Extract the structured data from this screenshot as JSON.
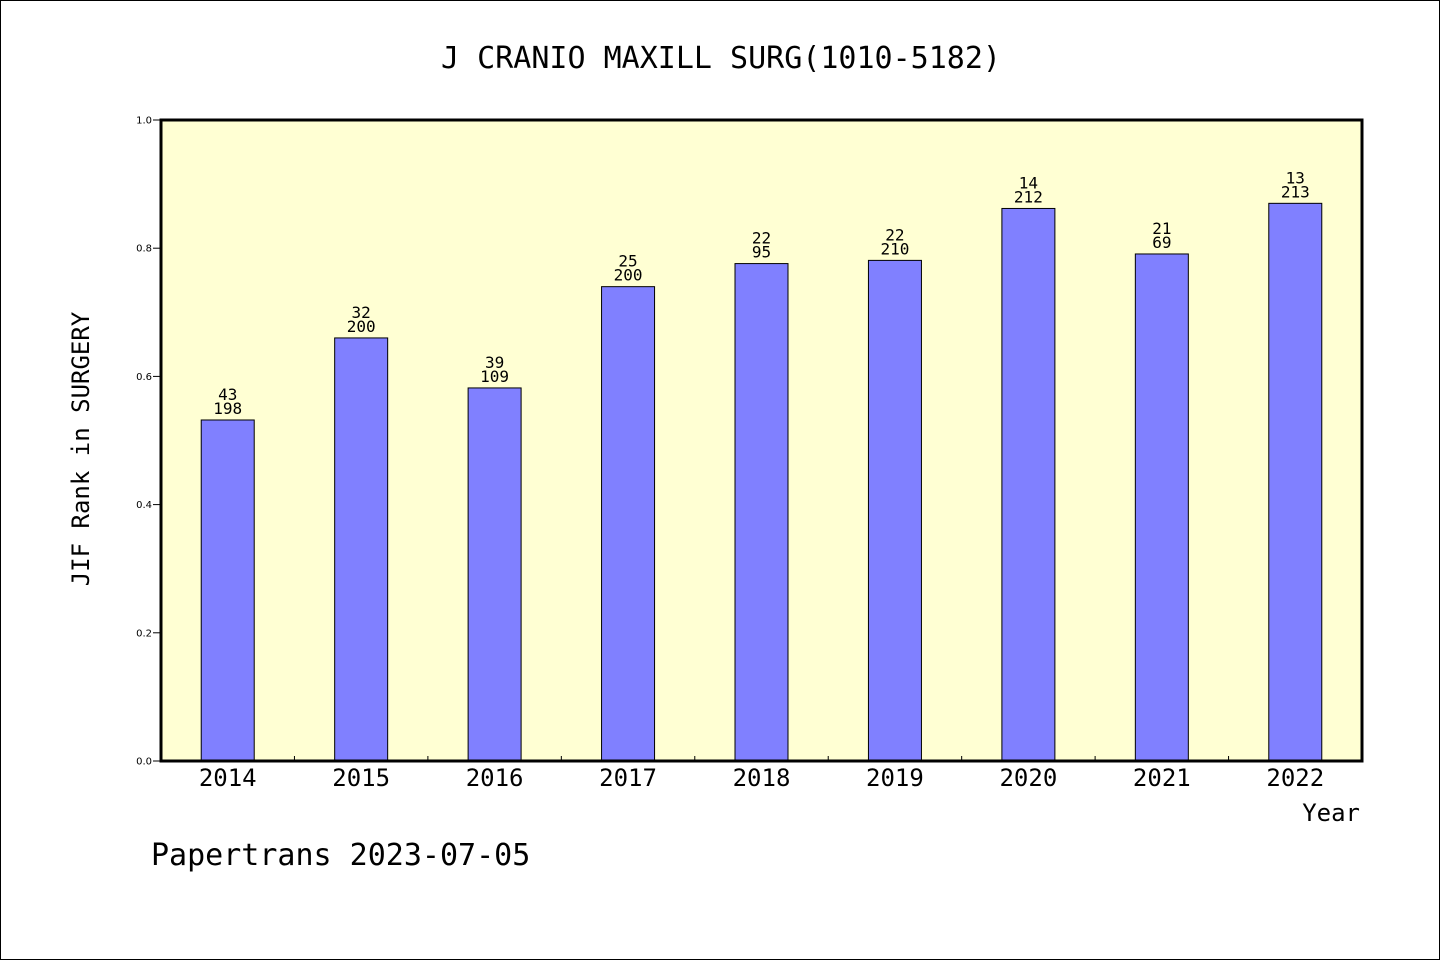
{
  "chart_data": {
    "type": "bar",
    "title": "J CRANIO MAXILL SURG(1010-5182)",
    "ylabel": "JIF Rank in SURGERY",
    "xlabel": "Year",
    "ylim": [
      0,
      1.0
    ],
    "yticks": [
      "0.0",
      "0.2",
      "0.4",
      "0.6",
      "0.8",
      "1.0"
    ],
    "categories": [
      "2014",
      "2015",
      "2016",
      "2017",
      "2018",
      "2019",
      "2020",
      "2021",
      "2022"
    ],
    "values": [
      0.532,
      0.66,
      0.582,
      0.74,
      0.776,
      0.781,
      0.862,
      0.791,
      0.87
    ],
    "rank": [
      "43",
      "32",
      "39",
      "25",
      "22",
      "22",
      "14",
      "21",
      "13"
    ],
    "total": [
      "198",
      "200",
      "109",
      "200",
      "95",
      "210",
      "212",
      "69",
      "213"
    ],
    "grid": false,
    "colors": {
      "plot_background": "#ffffd3",
      "bar_fill": "#8080ff",
      "bar_stroke": "#000000"
    }
  },
  "footer": "Papertrans 2023-07-05"
}
